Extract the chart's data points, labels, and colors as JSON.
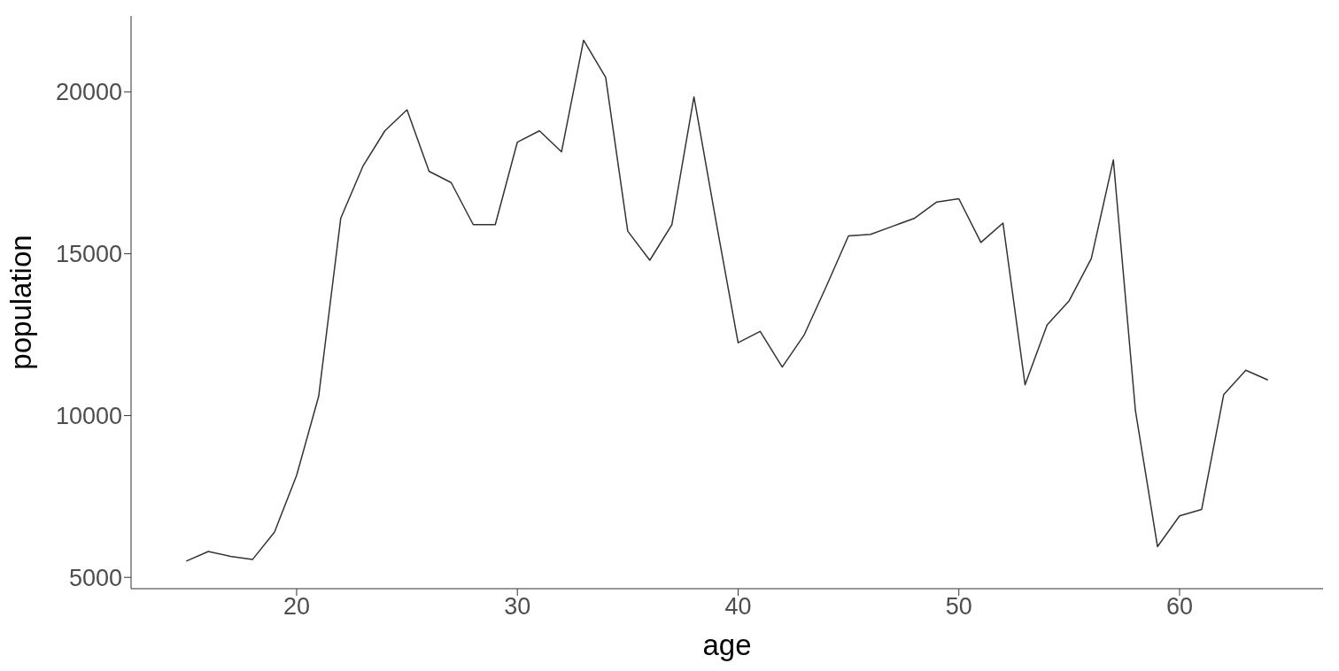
{
  "chart_data": {
    "type": "line",
    "xlabel": "age",
    "ylabel": "population",
    "x": [
      15,
      16,
      17,
      18,
      19,
      20,
      21,
      22,
      23,
      24,
      25,
      26,
      27,
      28,
      29,
      30,
      31,
      32,
      33,
      34,
      35,
      36,
      37,
      38,
      39,
      40,
      41,
      42,
      43,
      44,
      45,
      46,
      47,
      48,
      49,
      50,
      51,
      52,
      53,
      54,
      55,
      56,
      57,
      58,
      59,
      60,
      61,
      62,
      63,
      64
    ],
    "series": [
      {
        "color": "#333333",
        "values": [
          5500,
          5800,
          5650,
          5550,
          6400,
          8150,
          10600,
          16100,
          17700,
          18800,
          19450,
          17550,
          17200,
          15900,
          15900,
          18450,
          18800,
          18150,
          21600,
          20450,
          15700,
          14800,
          15900,
          19850,
          16000,
          12250,
          12600,
          11500,
          12500,
          14000,
          15550,
          15600,
          15850,
          16100,
          16600,
          16700,
          15350,
          15950,
          10950,
          12800,
          13550,
          14850,
          17900,
          10150,
          5950,
          6900,
          7100,
          10650,
          11400,
          11100
        ]
      }
    ],
    "xlim": [
      12.5,
      66.5
    ],
    "xticks": [
      20,
      30,
      40,
      50,
      60
    ],
    "ylim": [
      4650,
      22350
    ],
    "yticks": [
      5000,
      10000,
      15000,
      20000
    ],
    "grid": false,
    "legend": false,
    "marker": "none",
    "line_style": "solid"
  }
}
